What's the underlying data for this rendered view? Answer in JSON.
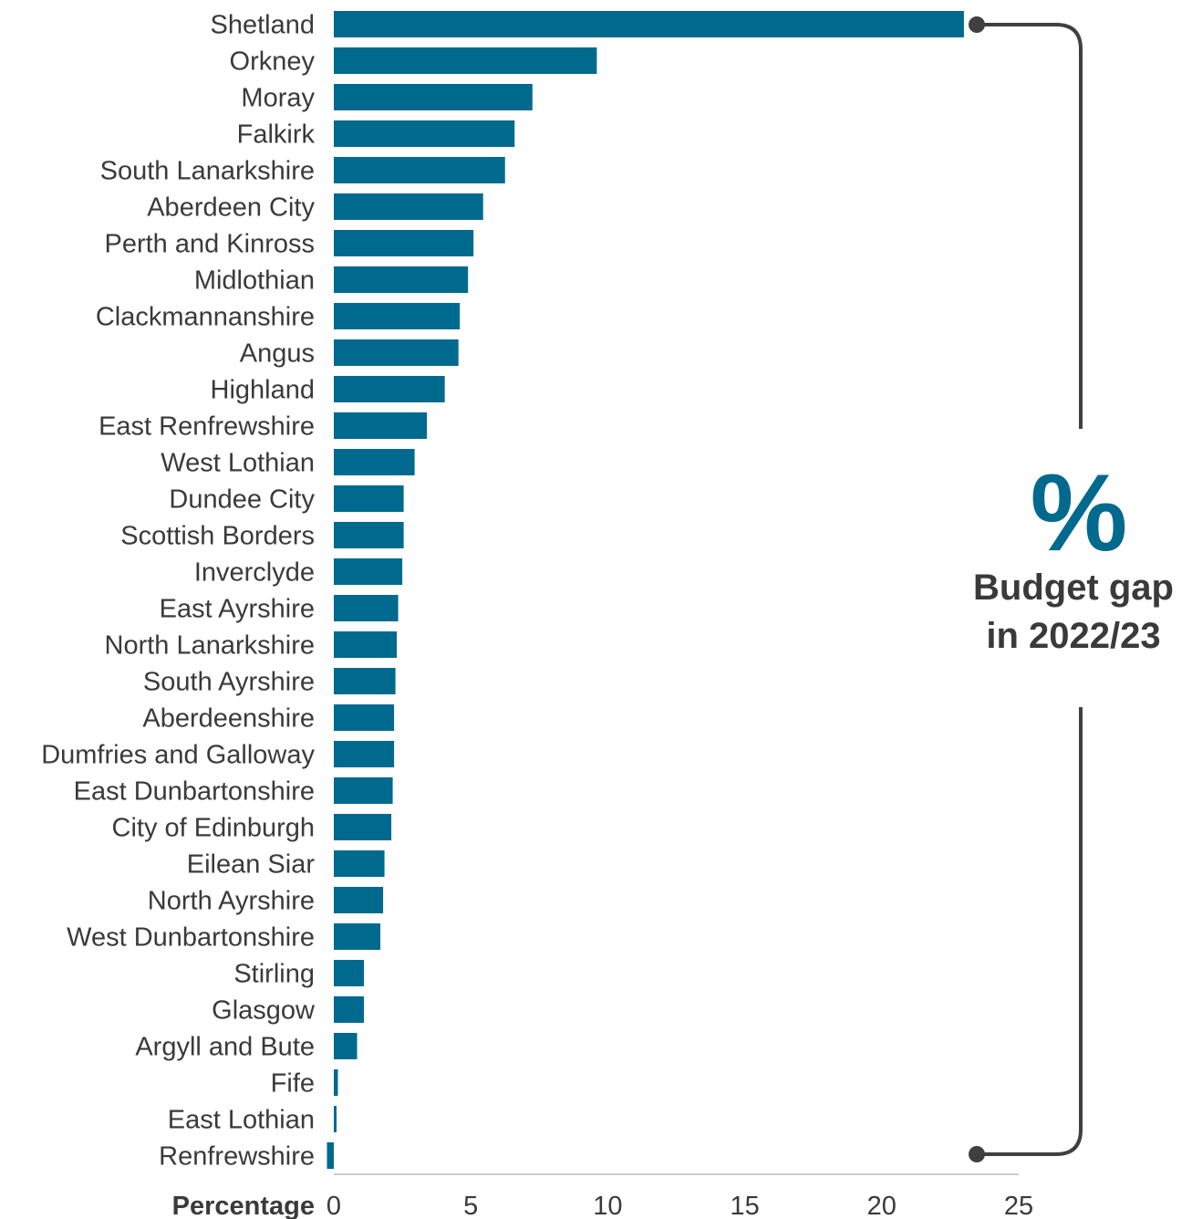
{
  "chart_data": {
    "type": "bar",
    "orientation": "horizontal",
    "categories": [
      "Shetland",
      "Orkney",
      "Moray",
      "Falkirk",
      "South Lanarkshire",
      "Aberdeen City",
      "Perth and Kinross",
      "Midlothian",
      "Clackmannanshire",
      "Angus",
      "Highland",
      "East Renfrewshire",
      "West Lothian",
      "Dundee City",
      "Scottish Borders",
      "Inverclyde",
      "East Ayrshire",
      "North Lanarkshire",
      "South Ayrshire",
      "Aberdeenshire",
      "Dumfries and Galloway",
      "East Dunbartonshire",
      "City of Edinburgh",
      "Eilean Siar",
      "North Ayrshire",
      "West Dunbartonshire",
      "Stirling",
      "Glasgow",
      "Argyll and Bute",
      "Fife",
      "East Lothian",
      "Renfrewshire"
    ],
    "values": [
      23.0,
      9.6,
      7.25,
      6.6,
      6.25,
      5.45,
      5.1,
      4.9,
      4.6,
      4.55,
      4.05,
      3.4,
      2.95,
      2.55,
      2.55,
      2.5,
      2.35,
      2.3,
      2.25,
      2.2,
      2.2,
      2.15,
      2.1,
      1.85,
      1.8,
      1.7,
      1.1,
      1.1,
      0.85,
      0.15,
      0.1,
      -0.25
    ],
    "xlabel": "Percentage",
    "xlim": [
      0,
      25
    ],
    "xticks": [
      0,
      5,
      10,
      15,
      20,
      25
    ],
    "grid": false,
    "bar_color": "#006a8e",
    "annotation": {
      "symbol": "%",
      "line1": "Budget gap",
      "line2": "in 2022/23",
      "symbol_color": "#006a8e",
      "text_color": "#3a3a3a",
      "bracket_color": "#404040"
    }
  }
}
